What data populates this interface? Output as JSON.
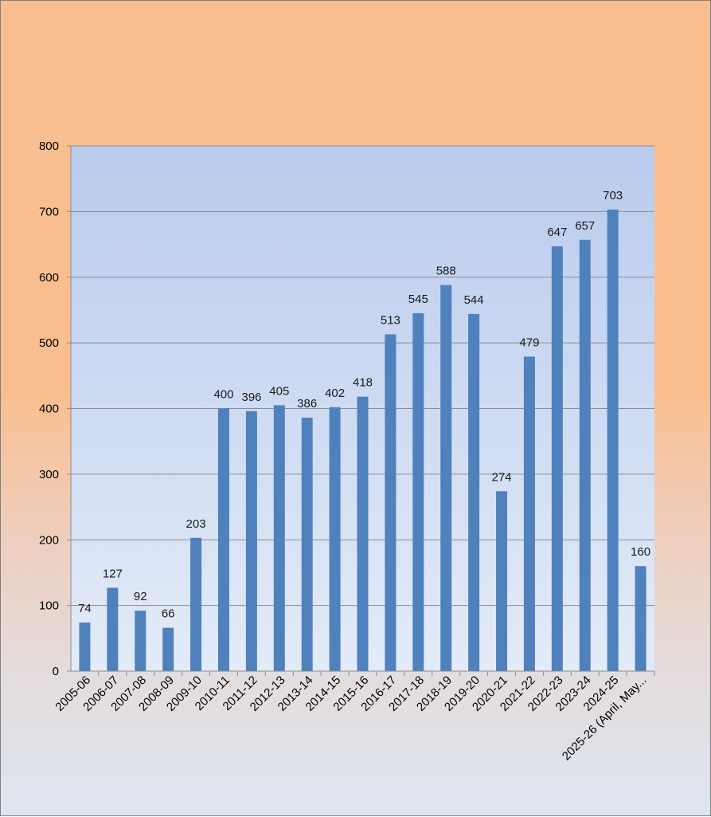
{
  "chart_data": {
    "type": "bar",
    "title": "",
    "xlabel": "",
    "ylabel": "",
    "ylim": [
      0,
      800
    ],
    "yticks": [
      0,
      100,
      200,
      300,
      400,
      500,
      600,
      700,
      800
    ],
    "grid": true,
    "legend": "none",
    "categories": [
      "2005-06",
      "2006-07",
      "2007-08",
      "2008-09",
      "2009-10",
      "2010-11",
      "2011-12",
      "2012-13",
      "2013-14",
      "2014-15",
      "2015-16",
      "2016-17",
      "2017-18",
      "2018-19",
      "2019-20",
      "2020-21",
      "2021-22",
      "2022-23",
      "2023-24",
      "2024-25",
      "2025-26 (April, May..."
    ],
    "values": [
      74,
      127,
      92,
      66,
      203,
      400,
      396,
      405,
      386,
      402,
      418,
      513,
      545,
      588,
      544,
      274,
      479,
      647,
      657,
      703,
      160
    ],
    "colors": {
      "bar": "#4f81bd",
      "plot_top": "#b9cbed",
      "plot_bottom": "#e3ebf8",
      "grid": "#8c8c8c",
      "axis": "#8c8c8c"
    }
  }
}
